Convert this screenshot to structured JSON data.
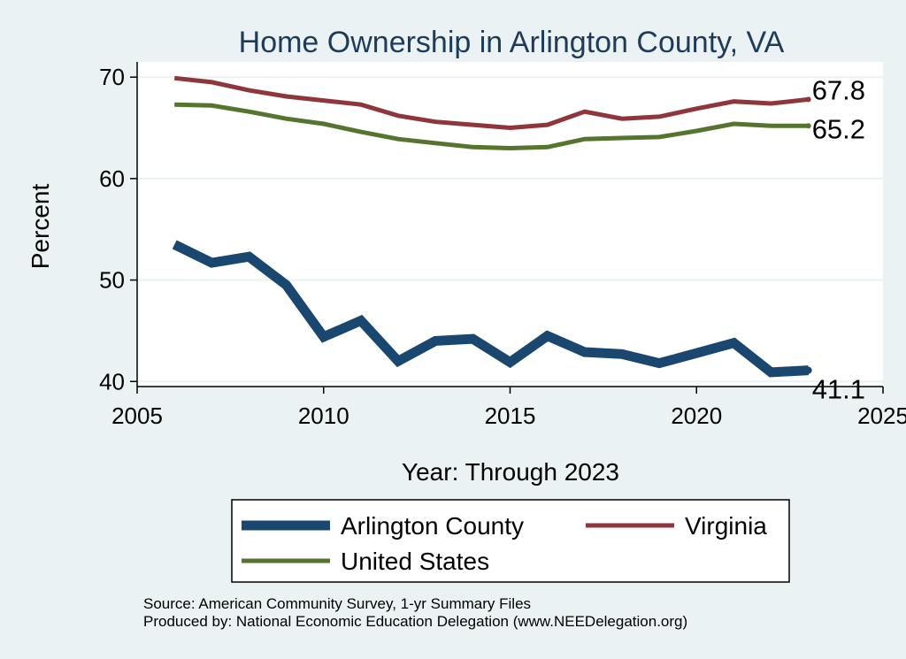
{
  "chart_data": {
    "type": "line",
    "title": "Home Ownership in Arlington County, VA",
    "xlabel": "Year: Through 2023",
    "ylabel": "Percent",
    "xlim": [
      2005,
      2025
    ],
    "ylim": [
      39.5,
      71.5
    ],
    "xticks": [
      2005,
      2010,
      2015,
      2020,
      2025
    ],
    "yticks": [
      40,
      50,
      60,
      70
    ],
    "grid": true,
    "x": [
      2006,
      2007,
      2008,
      2009,
      2010,
      2011,
      2012,
      2013,
      2014,
      2015,
      2016,
      2017,
      2018,
      2019,
      2020,
      2021,
      2022,
      2023
    ],
    "series": [
      {
        "name": "Arlington County",
        "color": "#1a476f",
        "values": [
          53.5,
          51.7,
          52.3,
          49.5,
          44.4,
          46.0,
          42.0,
          44.0,
          44.2,
          41.9,
          44.5,
          42.9,
          42.7,
          41.8,
          42.8,
          43.8,
          40.9,
          41.1
        ],
        "end_label": "41.1"
      },
      {
        "name": "Virginia",
        "color": "#90353b",
        "values": [
          69.9,
          69.5,
          68.7,
          68.1,
          67.7,
          67.3,
          66.2,
          65.6,
          65.3,
          65.0,
          65.3,
          66.6,
          65.9,
          66.1,
          66.9,
          67.6,
          67.4,
          67.8
        ],
        "end_label": "67.8"
      },
      {
        "name": "United States",
        "color": "#55752f",
        "values": [
          67.3,
          67.2,
          66.6,
          65.9,
          65.4,
          64.6,
          63.9,
          63.5,
          63.1,
          63.0,
          63.1,
          63.9,
          64.0,
          64.1,
          64.7,
          65.4,
          65.2,
          65.2
        ],
        "end_label": "65.2"
      }
    ],
    "legend_position": "bottom",
    "notes": [
      "Source: American Community Survey, 1-yr Summary Files",
      "Produced by: National Economic Education Delegation (www.NEEDelegation.org)"
    ]
  }
}
